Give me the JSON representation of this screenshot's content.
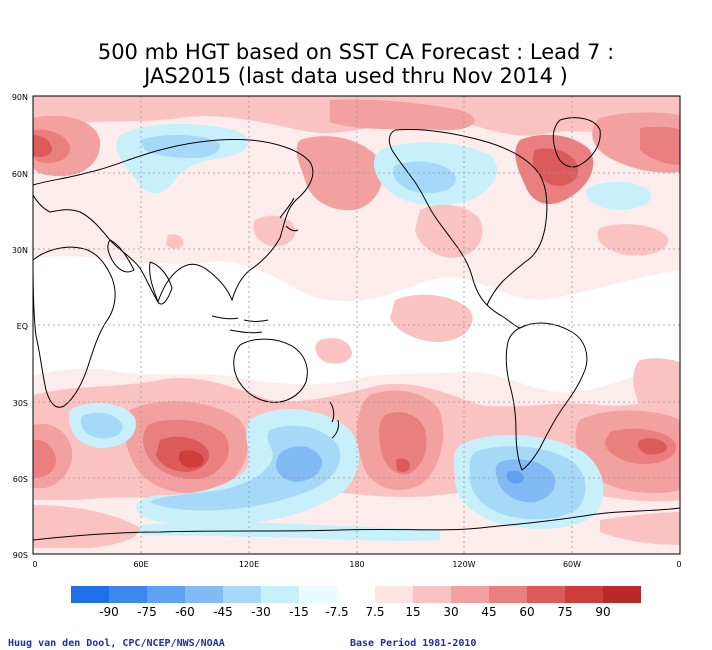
{
  "title": {
    "line1": "500 mb HGT based on SST CA Forecast : Lead 7 :",
    "line2": "JAS2015 (last data used thru Nov 2014 )"
  },
  "axes": {
    "lat_labels": [
      "90N",
      "60N",
      "30N",
      "EQ",
      "30S",
      "60S",
      "90S"
    ],
    "lon_labels": [
      "0",
      "60E",
      "120E",
      "180",
      "120W",
      "60W",
      "0"
    ]
  },
  "colorbar": {
    "labels": [
      "-90",
      "-75",
      "-60",
      "-45",
      "-30",
      "-15",
      "-7.5",
      "7.5",
      "15",
      "30",
      "45",
      "60",
      "75",
      "90"
    ],
    "colors": [
      "#1f6fe8",
      "#3c86ee",
      "#5ea0f2",
      "#82baf6",
      "#a6d8f8",
      "#c8f0fb",
      "#e8fbff",
      "#ffffff",
      "#ffe4e4",
      "#fbc2c2",
      "#f3a0a0",
      "#e97f7f",
      "#dd5a5a",
      "#cf3c3c",
      "#b82a2a"
    ]
  },
  "footer": {
    "credit": "Huug van den Dool, CPC/NCEP/NWS/NOAA",
    "base_period": "Base Period 1981-2010"
  }
}
